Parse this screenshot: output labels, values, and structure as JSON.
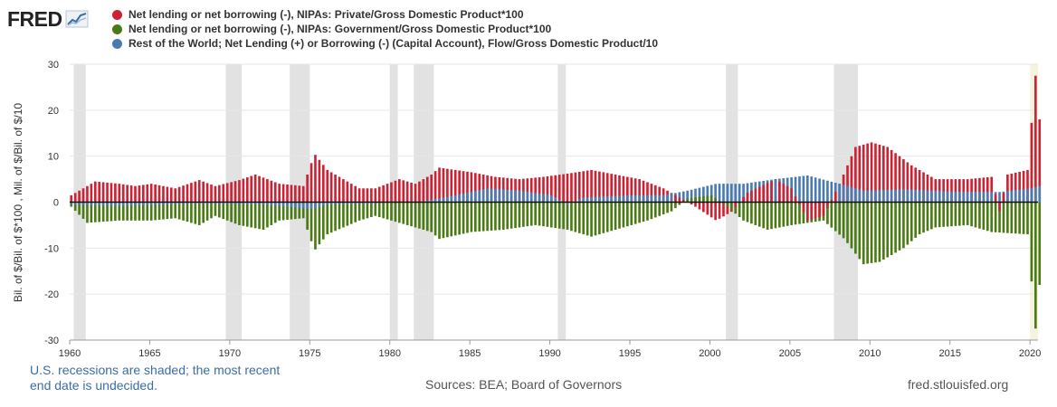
{
  "logo": {
    "text": "FRED",
    "mark": "chart-line-icon"
  },
  "colors": {
    "private": "#cc2233",
    "government": "#4a7a14",
    "rest_of_world": "#4a7bb0",
    "recession": "#e2e2e2",
    "latest": "#f4f4de"
  },
  "footer": {
    "note_line1": "U.S. recessions are shaded; the most recent",
    "note_line2": "end date is undecided.",
    "sources": "Sources: BEA; Board of Governors",
    "site": "fred.stlouisfed.org"
  },
  "chart_data": {
    "type": "bar",
    "ylabel": "Bil. of $/Bil. of $*100 , Mil. of $/Bil. of $/10",
    "xlabel": "",
    "ylim": [
      -30,
      30
    ],
    "xlim": [
      1960,
      2020.5
    ],
    "yticks": [
      "30",
      "20",
      "10",
      "0",
      "-10",
      "-20",
      "-30"
    ],
    "xticks": [
      "1960",
      "1965",
      "1970",
      "1975",
      "1980",
      "1985",
      "1990",
      "1995",
      "2000",
      "2005",
      "2010",
      "2015",
      "2020"
    ],
    "legend_position": "top",
    "grid": "horizontal",
    "frequency": "quarterly",
    "start": "1960-Q1",
    "recessions": [
      [
        1960.25,
        1961.0
      ],
      [
        1969.75,
        1970.75
      ],
      [
        1973.75,
        1975.0
      ],
      [
        1980.0,
        1980.5
      ],
      [
        1981.5,
        1982.75
      ],
      [
        1990.5,
        1991.0
      ],
      [
        2001.0,
        2001.75
      ],
      [
        2007.75,
        2009.25
      ],
      [
        2020.0,
        2020.5
      ]
    ],
    "series": [
      {
        "name": "Net lending or net borrowing (-), NIPAs: Private/Gross Domestic Product*100",
        "anchors": [
          [
            1960,
            1.5
          ],
          [
            1960.75,
            3
          ],
          [
            1961.5,
            4.5
          ],
          [
            1963,
            4
          ],
          [
            1964,
            3.5
          ],
          [
            1965,
            4
          ],
          [
            1966.5,
            3
          ],
          [
            1968,
            4.8
          ],
          [
            1969,
            3.5
          ],
          [
            1970.5,
            4.8
          ],
          [
            1971.5,
            6
          ],
          [
            1973,
            4
          ],
          [
            1974.5,
            3.5
          ],
          [
            1975.2,
            10.5
          ],
          [
            1976,
            7
          ],
          [
            1978,
            3
          ],
          [
            1979,
            3
          ],
          [
            1980.5,
            5
          ],
          [
            1981.5,
            4
          ],
          [
            1982.5,
            6
          ],
          [
            1983,
            7.5
          ],
          [
            1985,
            6.5
          ],
          [
            1986.5,
            5.5
          ],
          [
            1988,
            5
          ],
          [
            1989.5,
            5.5
          ],
          [
            1991,
            6.2
          ],
          [
            1992.5,
            7
          ],
          [
            1994,
            6
          ],
          [
            1995.5,
            5
          ],
          [
            1997,
            3
          ],
          [
            1998,
            1
          ],
          [
            1999,
            -1
          ],
          [
            2000.3,
            -4
          ],
          [
            2001.3,
            -2
          ],
          [
            2002.2,
            2
          ],
          [
            2004,
            5
          ],
          [
            2005,
            3
          ],
          [
            2006,
            -4
          ],
          [
            2007,
            -3
          ],
          [
            2008,
            4
          ],
          [
            2009,
            12
          ],
          [
            2010,
            13
          ],
          [
            2011,
            12
          ],
          [
            2012.5,
            8
          ],
          [
            2014,
            5
          ],
          [
            2016,
            5
          ],
          [
            2017.5,
            5.5
          ],
          [
            2018,
            -2
          ],
          [
            2018.5,
            6
          ],
          [
            2019.75,
            7
          ],
          [
            2020.25,
            27.5
          ],
          [
            2020.5,
            18
          ]
        ]
      },
      {
        "name": "Net lending or net borrowing (-), NIPAs: Government/Gross Domestic Product*100",
        "anchors": [
          [
            1960,
            -1
          ],
          [
            1961,
            -4.5
          ],
          [
            1963,
            -4
          ],
          [
            1965,
            -4
          ],
          [
            1966.5,
            -3.5
          ],
          [
            1968,
            -5
          ],
          [
            1969,
            -3
          ],
          [
            1970.5,
            -5
          ],
          [
            1972,
            -6
          ],
          [
            1973,
            -4
          ],
          [
            1974.5,
            -3.5
          ],
          [
            1975.2,
            -10.5
          ],
          [
            1976,
            -7
          ],
          [
            1978,
            -4
          ],
          [
            1979,
            -3
          ],
          [
            1981,
            -5
          ],
          [
            1982.5,
            -6.5
          ],
          [
            1983,
            -8
          ],
          [
            1985,
            -6.5
          ],
          [
            1987,
            -6
          ],
          [
            1989,
            -5
          ],
          [
            1991,
            -6
          ],
          [
            1992.5,
            -7.5
          ],
          [
            1994,
            -6
          ],
          [
            1996,
            -4
          ],
          [
            1997.5,
            -2
          ],
          [
            1998.5,
            0.8
          ],
          [
            2000,
            1.5
          ],
          [
            2001,
            -1
          ],
          [
            2002,
            -4
          ],
          [
            2003.5,
            -6
          ],
          [
            2005,
            -5
          ],
          [
            2007,
            -4
          ],
          [
            2008.3,
            -8
          ],
          [
            2009.5,
            -13.5
          ],
          [
            2010.5,
            -13
          ],
          [
            2012,
            -10
          ],
          [
            2013,
            -7
          ],
          [
            2014,
            -5.5
          ],
          [
            2016,
            -5
          ],
          [
            2017.5,
            -6.5
          ],
          [
            2019.75,
            -7
          ],
          [
            2020.25,
            -27.5
          ],
          [
            2020.5,
            -18
          ]
        ]
      },
      {
        "name": "Rest of the World; Net Lending (+) or Borrowing (-) (Capital Account), Flow/Gross Domestic Product/10",
        "anchors": [
          [
            1960,
            -0.5
          ],
          [
            1963,
            -0.8
          ],
          [
            1968,
            -0.3
          ],
          [
            1972,
            -0.5
          ],
          [
            1975,
            -1.5
          ],
          [
            1976,
            -0.5
          ],
          [
            1979,
            -0.3
          ],
          [
            1982,
            0.2
          ],
          [
            1984,
            1.5
          ],
          [
            1986,
            3
          ],
          [
            1988,
            2.5
          ],
          [
            1990,
            1.5
          ],
          [
            1991,
            -0.5
          ],
          [
            1992,
            1
          ],
          [
            1995,
            1.5
          ],
          [
            1997,
            1.5
          ],
          [
            1998.5,
            2.5
          ],
          [
            2000.3,
            4
          ],
          [
            2002,
            4
          ],
          [
            2004,
            5
          ],
          [
            2006,
            5.8
          ],
          [
            2008,
            4
          ],
          [
            2009.5,
            2.5
          ],
          [
            2012,
            2.8
          ],
          [
            2015,
            2.3
          ],
          [
            2018,
            2.2
          ],
          [
            2020,
            3
          ],
          [
            2020.5,
            3.5
          ]
        ]
      }
    ]
  }
}
